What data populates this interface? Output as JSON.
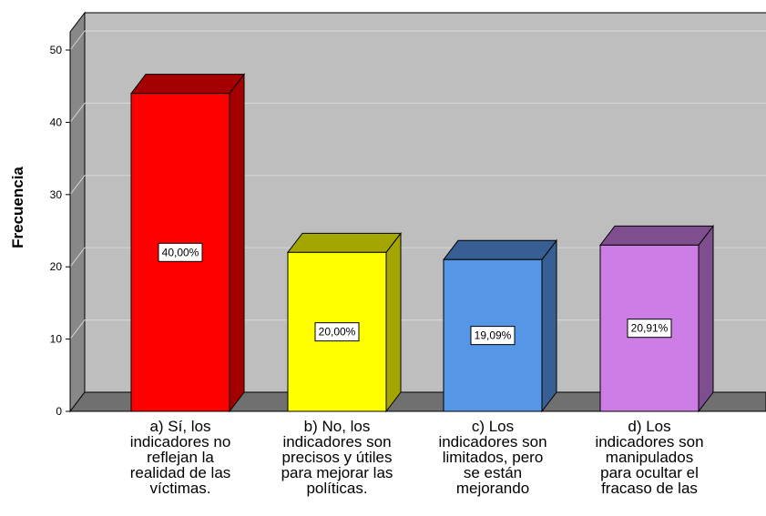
{
  "chart_data": {
    "type": "bar",
    "ylabel": "Frecuencia",
    "xlabel": "",
    "ylim": [
      0,
      50
    ],
    "yticks": [
      0,
      10,
      20,
      30,
      40,
      50
    ],
    "grid": true,
    "categories": [
      "a) Sí, los\nindicadores no\nreflejan la\nrealidad de las\nvíctimas.",
      "b) No, los\nindicadores son\nprecisos y útiles\npara mejorar las\npolíticas.",
      "c) Los\nindicadores son\nlimitados, pero\nse están\nmejorando",
      "d) Los\nindicadores son\nmanipulados\npara ocultar el\nfracaso de las"
    ],
    "values": [
      44,
      22,
      21,
      23
    ],
    "data_labels": [
      "40,00%",
      "20,00%",
      "19,09%",
      "20,91%"
    ],
    "colors": {
      "bars": [
        "#ff0000",
        "#ffff00",
        "#5596e6",
        "#cc7ee6"
      ],
      "sides": [
        "#a50000",
        "#a5a500",
        "#375f93",
        "#7e4e8f"
      ],
      "wall": "#bebebe",
      "floor": "#707070",
      "left_wall": "#888888"
    }
  }
}
